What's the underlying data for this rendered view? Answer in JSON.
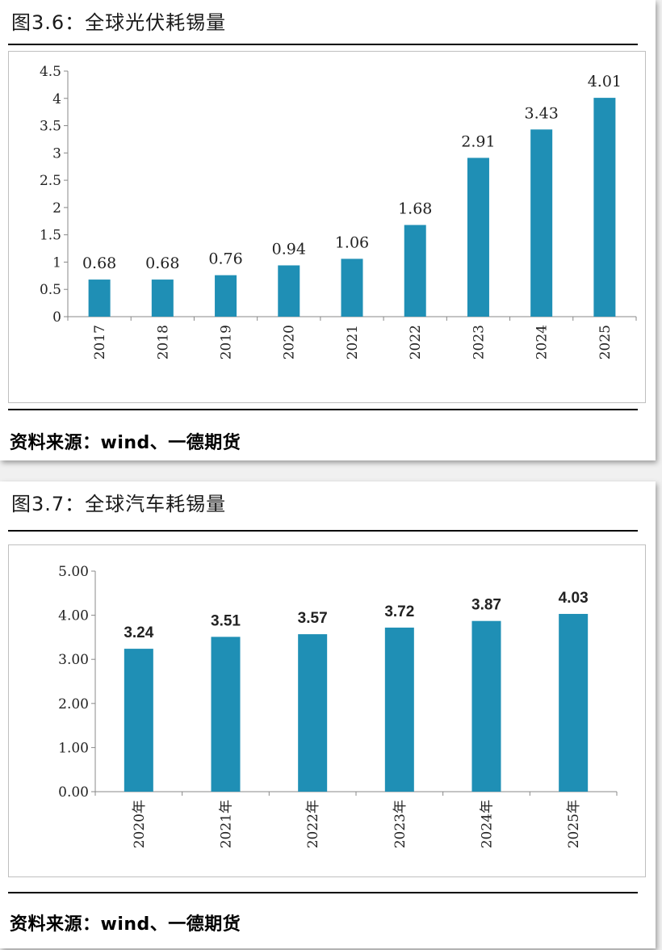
{
  "charts": [
    {
      "figure_title": "图3.6：全球光伏耗锡量",
      "source": "资料来源：wind、一德期货",
      "color": "#1f8fb5",
      "y_tick_labels": [
        "0",
        "0.5",
        "1",
        "1.5",
        "2",
        "2.5",
        "3",
        "3.5",
        "4",
        "4.5"
      ],
      "value_labels": [
        "0.68",
        "0.68",
        "0.76",
        "0.94",
        "1.06",
        "1.68",
        "2.91",
        "3.43",
        "4.01"
      ]
    },
    {
      "figure_title": "图3.7：全球汽车耗锡量",
      "source": "资料来源：wind、一德期货",
      "color": "#1f8fb5",
      "y_tick_labels": [
        "0.00",
        "1.00",
        "2.00",
        "3.00",
        "4.00",
        "5.00"
      ],
      "value_labels": [
        "3.24",
        "3.51",
        "3.57",
        "3.72",
        "3.87",
        "4.03"
      ]
    }
  ],
  "chart_data": [
    {
      "type": "bar",
      "title": "全球光伏耗锡量",
      "categories": [
        "2017",
        "2018",
        "2019",
        "2020",
        "2021",
        "2022",
        "2023",
        "2024",
        "2025"
      ],
      "values": [
        0.68,
        0.68,
        0.76,
        0.94,
        1.06,
        1.68,
        2.91,
        3.43,
        4.01
      ],
      "ylim": [
        0,
        4.5
      ],
      "grid": false,
      "legend": "none"
    },
    {
      "type": "bar",
      "title": "全球汽车耗锡量",
      "categories": [
        "2020年",
        "2021年",
        "2022年",
        "2023年",
        "2024年",
        "2025年"
      ],
      "values": [
        3.24,
        3.51,
        3.57,
        3.72,
        3.87,
        4.03
      ],
      "ylim": [
        0,
        5
      ],
      "grid": false,
      "legend": "none"
    }
  ]
}
